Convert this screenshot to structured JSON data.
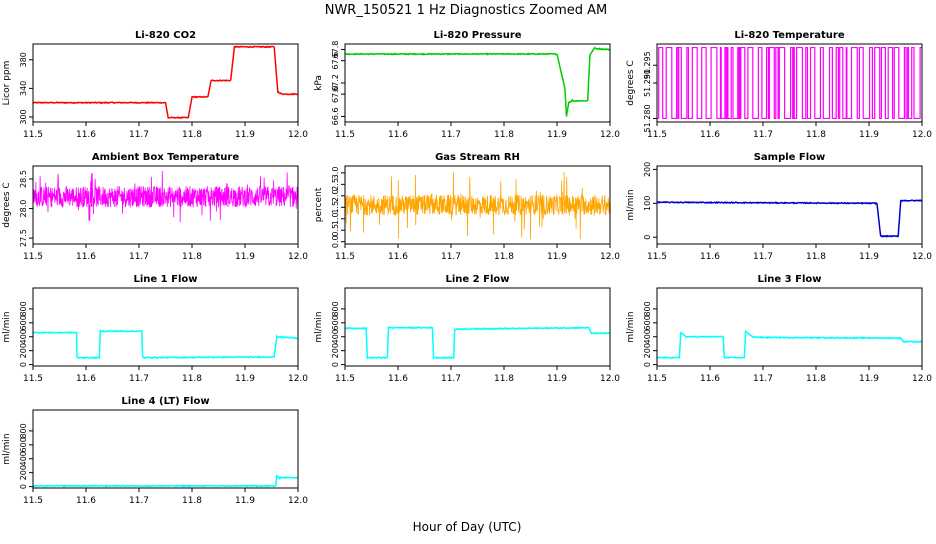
{
  "figure": {
    "title": "NWR_150521  1 Hz Diagnostics Zoomed AM",
    "xlabel": "Hour of Day (UTC)"
  },
  "chart_data": [
    {
      "type": "line",
      "title": "Li-820 CO2",
      "ylabel": "Licor ppm",
      "color": "#ff0000",
      "xlim": [
        11.5,
        12.0
      ],
      "ylim": [
        293,
        402
      ],
      "xticks": [
        11.5,
        11.6,
        11.7,
        11.8,
        11.9,
        12.0
      ],
      "yticks": [
        300,
        340,
        380
      ],
      "series": [
        {
          "x": [
            11.5,
            11.75,
            11.755,
            11.793,
            11.8,
            11.83,
            11.836,
            11.873,
            11.88,
            11.955,
            11.962,
            11.97,
            12.0
          ],
          "y": [
            320,
            320,
            299,
            299,
            328,
            328,
            351,
            351,
            398,
            398,
            335,
            332,
            332
          ]
        }
      ]
    },
    {
      "type": "line",
      "title": "Li-820 Pressure",
      "ylabel": "kPa",
      "color": "#00cc00",
      "xlim": [
        11.5,
        12.0
      ],
      "ylim": [
        66.5,
        67.9
      ],
      "xticks": [
        11.5,
        11.6,
        11.7,
        11.8,
        11.9,
        12.0
      ],
      "yticks": [
        66.6,
        67.0,
        67.2,
        67.6,
        67.8
      ],
      "series": [
        {
          "x": [
            11.5,
            11.9,
            11.915,
            11.918,
            11.922,
            11.928,
            11.958,
            11.962,
            11.97,
            12.0
          ],
          "y": [
            67.72,
            67.72,
            67.1,
            66.6,
            66.85,
            66.88,
            66.88,
            67.7,
            67.82,
            67.8
          ]
        }
      ]
    },
    {
      "type": "line",
      "title": "Li-820 Temperature",
      "ylabel": "degrees C",
      "color": "#ff00ff",
      "xlim": [
        11.5,
        12.0
      ],
      "ylim": [
        51.279,
        51.301
      ],
      "xticks": [
        11.5,
        11.6,
        11.7,
        11.8,
        11.9,
        12.0
      ],
      "yticks": [
        51.28,
        51.29,
        51.295
      ],
      "series": [
        {
          "x": [
            11.5,
            12.0
          ],
          "y": [
            51.28,
            51.3
          ]
        }
      ]
    },
    {
      "type": "line",
      "title": "Ambient Box Temperature",
      "ylabel": "degrees C",
      "color": "#ff00ff",
      "xlim": [
        11.5,
        12.0
      ],
      "ylim": [
        27.4,
        28.72
      ],
      "xticks": [
        11.5,
        11.6,
        11.7,
        11.8,
        11.9,
        12.0
      ],
      "yticks": [
        27.5,
        28.0,
        28.5
      ],
      "series": [
        {
          "x": [
            11.5,
            12.0
          ],
          "y": [
            28.2,
            28.2
          ]
        }
      ]
    },
    {
      "type": "line",
      "title": "Gas Stream RH",
      "ylabel": "percent",
      "color": "#ffa500",
      "xlim": [
        11.5,
        12.0
      ],
      "ylim": [
        -0.1,
        3.3
      ],
      "xticks": [
        11.5,
        11.6,
        11.7,
        11.8,
        11.9,
        12.0
      ],
      "yticks": [
        0.0,
        0.5,
        1.0,
        1.5,
        2.0,
        2.5,
        3.0
      ],
      "series": [
        {
          "x": [
            11.5,
            12.0
          ],
          "y": [
            1.6,
            1.6
          ]
        }
      ]
    },
    {
      "type": "line",
      "title": "Sample Flow",
      "ylabel": "ml/min",
      "color": "#0000cc",
      "xlim": [
        11.5,
        12.0
      ],
      "ylim": [
        -20,
        210
      ],
      "xticks": [
        11.5,
        11.6,
        11.7,
        11.8,
        11.9,
        12.0
      ],
      "yticks": [
        0,
        100,
        200
      ],
      "series": [
        {
          "x": [
            11.5,
            11.915,
            11.922,
            11.955,
            11.96,
            12.0
          ],
          "y": [
            103,
            100,
            3,
            3,
            108,
            108
          ]
        }
      ]
    },
    {
      "type": "line",
      "title": "Line 1 Flow",
      "ylabel": "ml/min",
      "color": "#00ffff",
      "xlim": [
        11.5,
        12.0
      ],
      "ylim": [
        -20,
        1100
      ],
      "xticks": [
        11.5,
        11.6,
        11.7,
        11.8,
        11.9,
        12.0
      ],
      "yticks": [
        0,
        200,
        400,
        600,
        800
      ],
      "series": [
        {
          "x": [
            11.5,
            11.582,
            11.583,
            11.625,
            11.627,
            11.705,
            11.707,
            11.955,
            11.96,
            12.0
          ],
          "y": [
            460,
            460,
            100,
            100,
            480,
            480,
            100,
            110,
            400,
            380
          ]
        }
      ]
    },
    {
      "type": "line",
      "title": "Line 2 Flow",
      "ylabel": "ml/min",
      "color": "#00ffff",
      "xlim": [
        11.5,
        12.0
      ],
      "ylim": [
        -20,
        1100
      ],
      "xticks": [
        11.5,
        11.6,
        11.7,
        11.8,
        11.9,
        12.0
      ],
      "yticks": [
        0,
        200,
        400,
        600,
        800
      ],
      "series": [
        {
          "x": [
            11.5,
            11.54,
            11.542,
            11.58,
            11.582,
            11.665,
            11.667,
            11.705,
            11.707,
            11.96,
            11.965,
            12.0
          ],
          "y": [
            520,
            520,
            100,
            100,
            530,
            530,
            100,
            100,
            510,
            530,
            450,
            450
          ]
        }
      ]
    },
    {
      "type": "line",
      "title": "Line 3 Flow",
      "ylabel": "ml/min",
      "color": "#00ffff",
      "xlim": [
        11.5,
        12.0
      ],
      "ylim": [
        -20,
        1100
      ],
      "xticks": [
        11.5,
        11.6,
        11.7,
        11.8,
        11.9,
        12.0
      ],
      "yticks": [
        0,
        200,
        400,
        600,
        800
      ],
      "series": [
        {
          "x": [
            11.5,
            11.542,
            11.545,
            11.555,
            11.625,
            11.627,
            11.665,
            11.667,
            11.68,
            11.7,
            11.96,
            11.965,
            12.0
          ],
          "y": [
            100,
            100,
            460,
            400,
            400,
            100,
            100,
            480,
            400,
            390,
            380,
            330,
            330
          ]
        }
      ]
    },
    {
      "type": "line",
      "title": "Line 4 (LT) Flow",
      "ylabel": "ml/min",
      "color": "#00ffff",
      "xlim": [
        11.5,
        12.0
      ],
      "ylim": [
        -20,
        1100
      ],
      "xticks": [
        11.5,
        11.6,
        11.7,
        11.8,
        11.9,
        12.0
      ],
      "yticks": [
        0,
        200,
        400,
        600,
        800
      ],
      "series": [
        {
          "x": [
            11.5,
            11.958,
            11.96,
            11.965,
            12.0
          ],
          "y": [
            10,
            10,
            150,
            130,
            130
          ]
        }
      ]
    }
  ]
}
